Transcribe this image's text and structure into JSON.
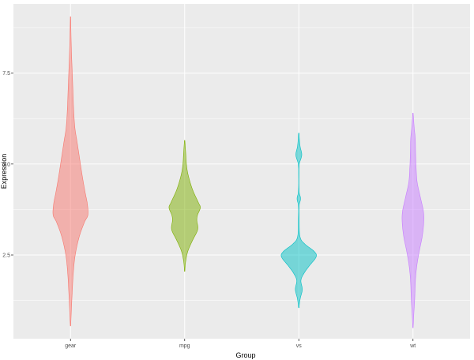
{
  "chart_data": {
    "type": "violin",
    "title": "",
    "xlabel": "Group",
    "ylabel": "Expression",
    "categories": [
      "gear",
      "mpg",
      "vs",
      "wt"
    ],
    "ylim": [
      0.2,
      9.4
    ],
    "y_ticks": [
      2.5,
      5.0,
      7.5
    ],
    "y_tick_labels": [
      "2.5",
      "5.0",
      "7.5"
    ],
    "grid": true,
    "legend": "none",
    "panel_background": "#ebebeb",
    "grid_color": "#ffffff",
    "series": [
      {
        "category": "gear",
        "color": "#f8766d",
        "range": [
          0.55,
          9.05
        ],
        "density": [
          [
            0.55,
            0.01
          ],
          [
            1.0,
            0.05
          ],
          [
            1.5,
            0.1
          ],
          [
            2.0,
            0.16
          ],
          [
            2.5,
            0.27
          ],
          [
            3.0,
            0.5
          ],
          [
            3.4,
            0.8
          ],
          [
            3.6,
            1.0
          ],
          [
            3.9,
            0.97
          ],
          [
            4.2,
            0.85
          ],
          [
            4.6,
            0.7
          ],
          [
            5.0,
            0.57
          ],
          [
            5.6,
            0.38
          ],
          [
            6.0,
            0.25
          ],
          [
            6.5,
            0.18
          ],
          [
            7.0,
            0.14
          ],
          [
            7.5,
            0.1
          ],
          [
            8.0,
            0.06
          ],
          [
            8.5,
            0.03
          ],
          [
            9.05,
            0.01
          ]
        ]
      },
      {
        "category": "mpg",
        "color": "#7cae00",
        "range": [
          2.05,
          5.65
        ],
        "density": [
          [
            2.05,
            0.01
          ],
          [
            2.3,
            0.05
          ],
          [
            2.6,
            0.18
          ],
          [
            2.9,
            0.45
          ],
          [
            3.2,
            0.75
          ],
          [
            3.45,
            0.7
          ],
          [
            3.6,
            0.74
          ],
          [
            3.8,
            0.9
          ],
          [
            3.95,
            0.78
          ],
          [
            4.3,
            0.45
          ],
          [
            4.7,
            0.2
          ],
          [
            5.0,
            0.1
          ],
          [
            5.3,
            0.06
          ],
          [
            5.65,
            0.01
          ]
        ]
      },
      {
        "category": "vs",
        "color": "#00bfc4",
        "range": [
          1.05,
          5.85
        ],
        "density": [
          [
            1.05,
            0.01
          ],
          [
            1.3,
            0.08
          ],
          [
            1.55,
            0.2
          ],
          [
            1.8,
            0.12
          ],
          [
            2.0,
            0.3
          ],
          [
            2.2,
            0.6
          ],
          [
            2.45,
            1.0
          ],
          [
            2.6,
            0.88
          ],
          [
            2.8,
            0.35
          ],
          [
            3.0,
            0.07
          ],
          [
            3.5,
            0.02
          ],
          [
            3.85,
            0.02
          ],
          [
            4.05,
            0.1
          ],
          [
            4.25,
            0.02
          ],
          [
            4.7,
            0.01
          ],
          [
            5.0,
            0.03
          ],
          [
            5.25,
            0.17
          ],
          [
            5.5,
            0.07
          ],
          [
            5.85,
            0.01
          ]
        ]
      },
      {
        "category": "wt",
        "color": "#c77cff",
        "range": [
          0.5,
          6.4
        ],
        "density": [
          [
            0.5,
            0.01
          ],
          [
            0.9,
            0.05
          ],
          [
            1.3,
            0.1
          ],
          [
            1.8,
            0.14
          ],
          [
            2.2,
            0.22
          ],
          [
            2.6,
            0.36
          ],
          [
            3.0,
            0.53
          ],
          [
            3.4,
            0.62
          ],
          [
            3.7,
            0.6
          ],
          [
            4.1,
            0.42
          ],
          [
            4.5,
            0.24
          ],
          [
            4.9,
            0.18
          ],
          [
            5.3,
            0.15
          ],
          [
            5.7,
            0.13
          ],
          [
            6.0,
            0.07
          ],
          [
            6.4,
            0.01
          ]
        ]
      }
    ]
  }
}
